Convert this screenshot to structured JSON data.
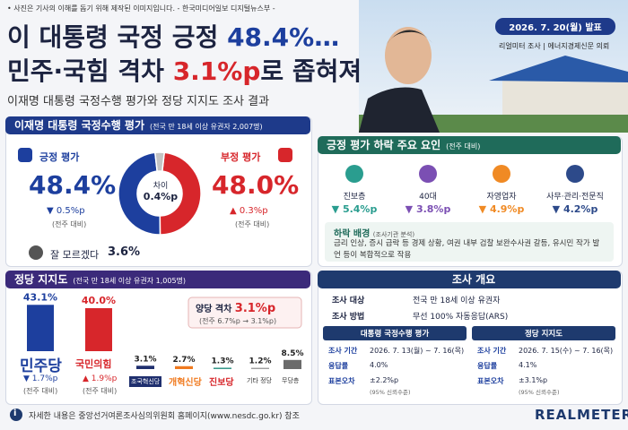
{
  "header": {
    "disclaimer": "• 사진은 기사의 이해를 돕기 위해 제작된 이미지입니다. - 한국미디어일보 디지털뉴스부 -",
    "title_1": "이 대통령 국정 긍정",
    "title_1_highlight": "48.4%…",
    "title_2": "민주·국힘 격차",
    "title_2_highlight": "3.1%p",
    "title_2_end": "로 좁혀져",
    "subtitle": "이재명 대통령 국정수행 평가와 정당 지지도 조사 결과",
    "date": "2026. 7. 20(월) 발표",
    "source_1": "리얼미터 조사",
    "source_2": "에너지경제신문 의뢰"
  },
  "chart_data": [
    {
      "type": "pie",
      "categories": [
        "긍정 평가",
        "부정 평가",
        "잘 모르겠다"
      ],
      "values": [
        48.4,
        48.0,
        3.6
      ],
      "value_labels": [
        "48.4%",
        "48.0%",
        "3.6%"
      ],
      "colors": [
        "#1d3f9e",
        "#d7262b",
        "#c4c4c4"
      ]
    },
    {
      "type": "bar",
      "categories": [
        "민주당",
        "국민의힘",
        "조국혁신당",
        "개혁신당",
        "진보당",
        "기타 정당",
        "무당층"
      ],
      "values": [
        43.1,
        40.0,
        3.1,
        2.7,
        1.3,
        1.2,
        8.5
      ],
      "value_labels": [
        "43.1%",
        "40.0%",
        "3.1%",
        "2.7%",
        "1.3%",
        "1.2%",
        "8.5%"
      ],
      "colors": [
        "#1d3f9e",
        "#d7262b",
        "#1f2f6e",
        "#f07a1f",
        "#3a9a8c",
        "#a0a0a0",
        "#6b6b6b"
      ]
    }
  ],
  "approval": {
    "heading": "이재명 대통령 국정수행 평가",
    "note": "(전국 만 18세 이상 유권자 2,007명)",
    "positive_change": "▼ 0.5%p",
    "negative_change": "▲ 0.3%p",
    "week_note": "(전주 대비)",
    "center_label": "차이",
    "center_value": "0.4%p"
  },
  "factors": {
    "heading": "긍정 평가 하락 주요 요인",
    "note": "(전주 대비)",
    "items": [
      {
        "label": "진보층",
        "value": "▼ 5.4%p"
      },
      {
        "label": "40대",
        "value": "▼ 3.8%p"
      },
      {
        "label": "자영업자",
        "value": "▼ 4.9%p"
      },
      {
        "label": "사무·관리·전문직",
        "value": "▼ 4.2%p"
      }
    ],
    "background_title": "하락 배경",
    "background_note": "(조사기관 분석)",
    "background_text": "금리 인상, 증시 급락 등 경제 상황, 여권 내부 검찰 보완수사권 갈등, 유시민 작가 발언 등이 복합적으로 작용"
  },
  "party": {
    "heading": "정당 지지도",
    "note": "(전국 만 18세 이상 유권자 1,005명)",
    "gap_label": "양당 격차",
    "gap_value": "3.1%p",
    "gap_note": "(전주 6.7%p → 3.1%p)",
    "changes": [
      "▼ 1.7%p",
      "▲ 1.9%p"
    ],
    "week_note": "(전주 대비)"
  },
  "overview": {
    "heading": "조사 개요",
    "rows": [
      [
        "조사 대상",
        "전국 만 18세 이상 유권자"
      ],
      [
        "조사 방법",
        "무선 100% 자동응답(ARS)"
      ]
    ],
    "tables": [
      {
        "title": "대통령 국정수행 평가",
        "rows": [
          [
            "조사 기간",
            "2026. 7. 13(월) ~ 7. 16(목)"
          ],
          [
            "응답률",
            "4.0%"
          ],
          [
            "표본오차",
            "±2.2%p"
          ]
        ],
        "confidence": "(95% 신뢰수준)"
      },
      {
        "title": "정당 지지도",
        "rows": [
          [
            "조사 기간",
            "2026. 7. 15(수) ~ 7. 16(목)"
          ],
          [
            "응답률",
            "4.1%"
          ],
          [
            "표본오차",
            "±3.1%p"
          ]
        ],
        "confidence": "(95% 신뢰수준)"
      }
    ]
  },
  "footer": {
    "note": "자세한 내용은 중앙선거여론조사심의위원회 홈페이지(www.nesdc.go.kr) 참조",
    "logo": "REALMETER"
  }
}
